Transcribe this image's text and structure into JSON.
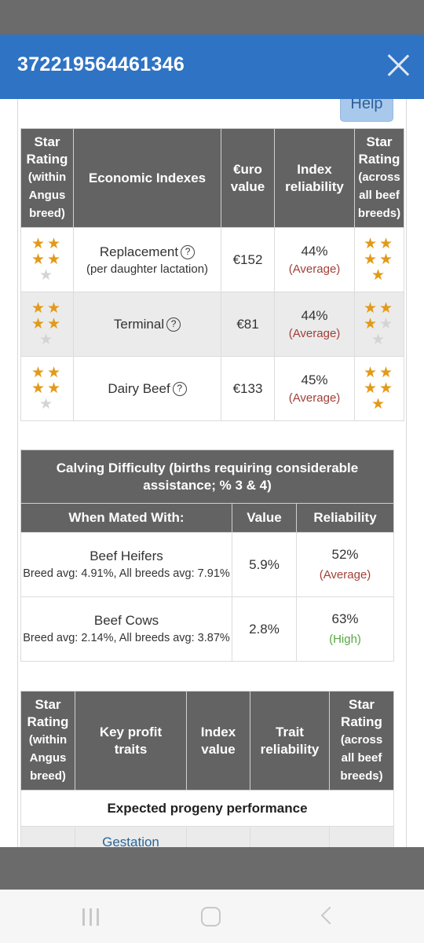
{
  "modal": {
    "title": "372219564461346"
  },
  "help_label": "Help",
  "colors": {
    "header": "#2f73c4",
    "table_header": "#636363",
    "star": "#e29a19",
    "average": "#a33f37",
    "high": "#56a843"
  },
  "economic": {
    "headers": {
      "star_within": [
        "Star",
        "Rating",
        "(within",
        "Angus",
        "breed)"
      ],
      "indexes": "Economic Indexes",
      "euro": [
        "€uro",
        "value"
      ],
      "reliability": [
        "Index",
        "reliability"
      ],
      "star_across": [
        "Star",
        "Rating",
        "(across",
        "all beef",
        "breeds)"
      ]
    },
    "rows": [
      {
        "name": "Replacement",
        "sub": "(per daughter lactation)",
        "value": "€152",
        "reliability": "44%",
        "level": "(Average)",
        "stars_within": 4,
        "stars_across": 5
      },
      {
        "name": "Terminal",
        "sub": "",
        "value": "€81",
        "reliability": "44%",
        "level": "(Average)",
        "stars_within": 4,
        "stars_across": 3
      },
      {
        "name": "Dairy Beef",
        "sub": "",
        "value": "€133",
        "reliability": "45%",
        "level": "(Average)",
        "stars_within": 4,
        "stars_across": 5
      }
    ]
  },
  "calving": {
    "title": "Calving Difficulty (births requiring considerable assistance; % 3 & 4)",
    "headers": {
      "mated": "When Mated With:",
      "value": "Value",
      "reliability": "Reliability"
    },
    "rows": [
      {
        "name": "Beef Heifers",
        "breed_avg": "Breed avg: 4.91%, All breeds avg: 7.91%",
        "value": "5.9%",
        "reliability": "52%",
        "level": "(Average)"
      },
      {
        "name": "Beef Cows",
        "breed_avg": "Breed avg: 2.14%, All breeds avg: 3.87%",
        "value": "2.8%",
        "reliability": "63%",
        "level": "(High)"
      }
    ]
  },
  "profit": {
    "headers": {
      "star_within": [
        "Star",
        "Rating",
        "(within",
        "Angus",
        "breed)"
      ],
      "traits": [
        "Key profit",
        "traits"
      ],
      "index_value": [
        "Index",
        "value"
      ],
      "trait_reliability": [
        "Trait",
        "reliability"
      ],
      "star_across": [
        "Star",
        "Rating",
        "(across",
        "all beef",
        "breeds)"
      ]
    },
    "section": "Expected progeny performance",
    "first_trait": "Gestation"
  }
}
